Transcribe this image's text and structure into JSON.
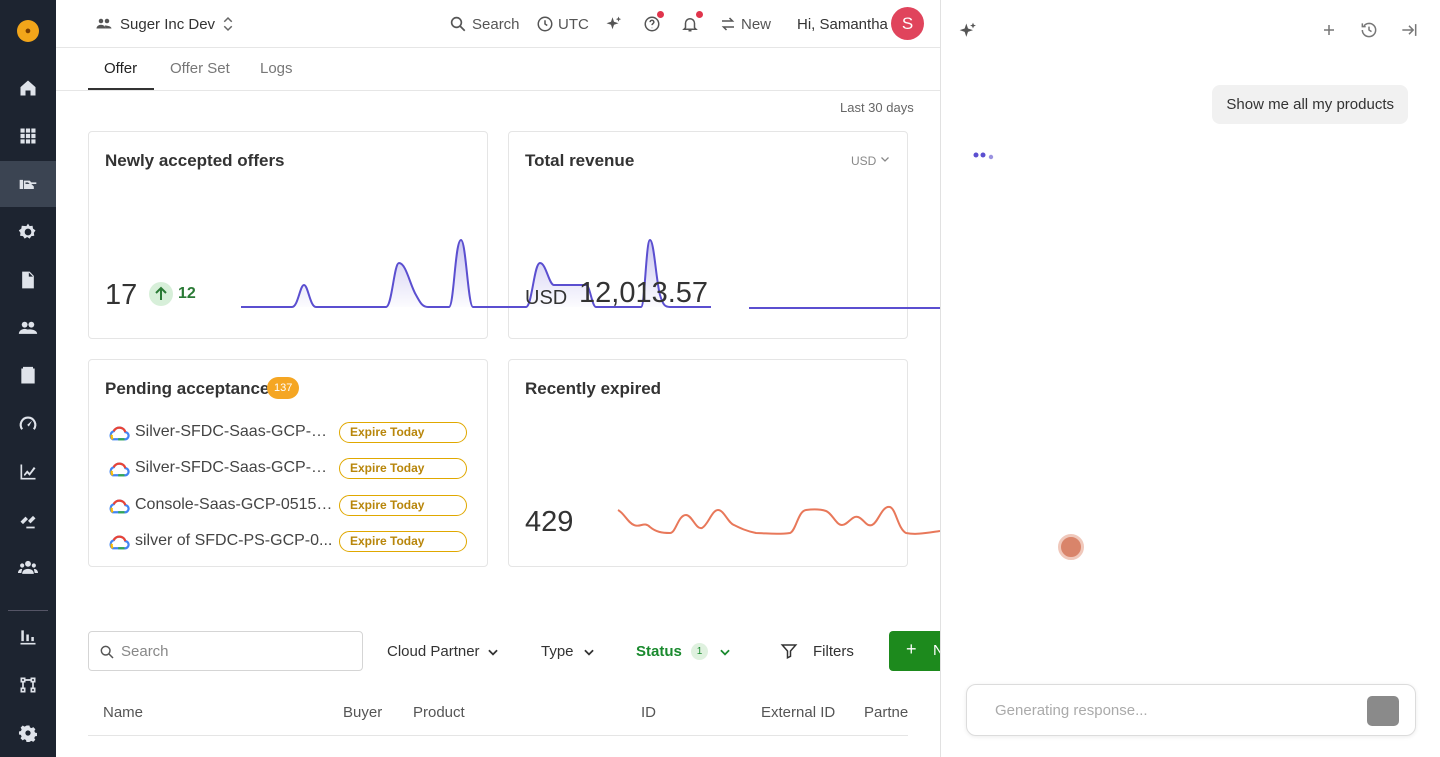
{
  "rail": {
    "items": [
      "home",
      "apps",
      "offers",
      "settings-gear",
      "documents",
      "users",
      "contacts",
      "speedometer",
      "analytics",
      "integrations",
      "team",
      "reports",
      "workflow",
      "settings"
    ]
  },
  "topbar": {
    "org_name": "Suger Inc Dev",
    "search_label": "Search",
    "timezone": "UTC",
    "new_label": "New",
    "greeting": "Hi, Samantha",
    "avatar_initial": "S",
    "avatar_color": "#e0445c"
  },
  "tabs": [
    "Offer",
    "Offer Set",
    "Logs"
  ],
  "range_label": "Last 30 days",
  "cards": {
    "newly_accepted": {
      "title": "Newly accepted offers",
      "value": "17",
      "delta": "12"
    },
    "total_revenue": {
      "title": "Total revenue",
      "currency_select": "USD",
      "currency": "USD",
      "value": "12,013.57"
    },
    "pending": {
      "title": "Pending acceptance",
      "count": "137",
      "rows": [
        {
          "name": "Silver-SFDC-Saas-GCP-05...",
          "status": "Expire Today"
        },
        {
          "name": "Silver-SFDC-Saas-GCP-05...",
          "status": "Expire Today"
        },
        {
          "name": "Console-Saas-GCP-0515-...",
          "status": "Expire Today"
        },
        {
          "name": "silver of SFDC-PS-GCP-0...",
          "status": "Expire Today"
        }
      ]
    },
    "recently_expired": {
      "title": "Recently expired",
      "value": "429"
    }
  },
  "filters": {
    "search_placeholder": "Search",
    "cloud_partner": "Cloud Partner",
    "type": "Type",
    "status": "Status",
    "status_count": "1",
    "filters": "Filters",
    "new_button": "N"
  },
  "table": {
    "columns": [
      "Name",
      "Buyer",
      "Product",
      "ID",
      "External ID",
      "Partne"
    ]
  },
  "panel": {
    "user_message": "Show me all my products",
    "composer_placeholder": "Generating response..."
  },
  "colors": {
    "accent_purple": "#5b4fd0",
    "accent_orange": "#e8785a",
    "status_green": "#1a8a2e",
    "pill_amber": "#e0a800",
    "rail_bg": "#1d2430"
  }
}
